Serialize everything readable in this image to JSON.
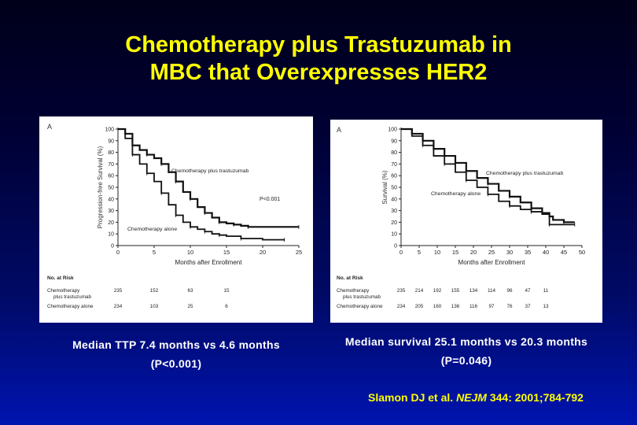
{
  "slide": {
    "title_line1": "Chemotherapy plus Trastuzumab in",
    "title_line2": "MBC that Overexpresses HER2",
    "caption_left_line1": "Median TTP 7.4 months vs 4.6 months",
    "caption_left_line2": "(P<0.001)",
    "caption_right_line1": "Median survival 25.1 months vs 20.3 months",
    "caption_right_line2": "(P=0.046)",
    "citation_authors": "Slamon DJ et al. ",
    "citation_journal": "NEJM",
    "citation_rest": " 344: 2001;784-792",
    "colors": {
      "title": "#ffff00",
      "caption": "#ffffff",
      "citation": "#ffff00"
    }
  },
  "chart_data": [
    {
      "type": "line",
      "panel_label": "A",
      "xlabel": "Months after Enrollment",
      "ylabel": "Progression-free Survival (%)",
      "xlim": [
        0,
        25
      ],
      "ylim": [
        0,
        100
      ],
      "x_ticks": [
        0,
        5,
        10,
        15,
        20,
        25
      ],
      "y_ticks": [
        0,
        10,
        20,
        30,
        40,
        50,
        60,
        70,
        80,
        90,
        100
      ],
      "annotation": "P<0.001",
      "series": [
        {
          "name": "Chemotherapy plus trastuzumab",
          "points": [
            [
              0,
              100
            ],
            [
              1,
              96
            ],
            [
              2,
              86
            ],
            [
              3,
              82
            ],
            [
              4,
              78
            ],
            [
              5,
              75
            ],
            [
              6,
              70
            ],
            [
              7,
              63
            ],
            [
              8,
              55
            ],
            [
              9,
              46
            ],
            [
              10,
              40
            ],
            [
              11,
              33
            ],
            [
              12,
              28
            ],
            [
              13,
              24
            ],
            [
              14,
              20
            ],
            [
              15,
              19
            ],
            [
              16,
              18
            ],
            [
              17,
              17
            ],
            [
              18,
              16
            ],
            [
              22,
              16
            ],
            [
              25,
              16
            ]
          ]
        },
        {
          "name": "Chemotherapy alone",
          "points": [
            [
              0,
              100
            ],
            [
              1,
              92
            ],
            [
              2,
              78
            ],
            [
              3,
              70
            ],
            [
              4,
              62
            ],
            [
              5,
              55
            ],
            [
              6,
              45
            ],
            [
              7,
              35
            ],
            [
              8,
              26
            ],
            [
              9,
              20
            ],
            [
              10,
              16
            ],
            [
              11,
              14
            ],
            [
              12,
              12
            ],
            [
              13,
              10
            ],
            [
              14,
              9
            ],
            [
              15,
              8
            ],
            [
              17,
              6
            ],
            [
              20,
              5
            ],
            [
              23,
              5
            ]
          ]
        }
      ],
      "risk_table": {
        "header": "No. at Risk",
        "rows": [
          {
            "label_line1": "Chemotherapy",
            "label_line2": "plus trastuzumab",
            "values": [
              "235",
              "152",
              "63",
              "15"
            ]
          },
          {
            "label_line1": "Chemotherapy alone",
            "label_line2": "",
            "values": [
              "234",
              "103",
              "25",
              "6"
            ]
          }
        ]
      }
    },
    {
      "type": "line",
      "panel_label": "A",
      "xlabel": "Months after Enrollment",
      "ylabel": "Survival (%)",
      "xlim": [
        0,
        50
      ],
      "ylim": [
        0,
        100
      ],
      "x_ticks": [
        0,
        5,
        10,
        15,
        20,
        25,
        30,
        35,
        40,
        45,
        50
      ],
      "y_ticks": [
        0,
        10,
        20,
        30,
        40,
        50,
        60,
        70,
        80,
        90,
        100
      ],
      "series": [
        {
          "name": "Chemotherapy plus trastuzumab",
          "points": [
            [
              0,
              100
            ],
            [
              3,
              96
            ],
            [
              6,
              90
            ],
            [
              9,
              83
            ],
            [
              12,
              77
            ],
            [
              15,
              71
            ],
            [
              18,
              64
            ],
            [
              21,
              58
            ],
            [
              24,
              53
            ],
            [
              27,
              47
            ],
            [
              30,
              42
            ],
            [
              33,
              37
            ],
            [
              36,
              32
            ],
            [
              39,
              28
            ],
            [
              41,
              25
            ],
            [
              42,
              22
            ],
            [
              45,
              20
            ],
            [
              48,
              20
            ]
          ]
        },
        {
          "name": "Chemotherapy alone",
          "points": [
            [
              0,
              100
            ],
            [
              3,
              94
            ],
            [
              6,
              86
            ],
            [
              9,
              77
            ],
            [
              12,
              70
            ],
            [
              15,
              63
            ],
            [
              18,
              56
            ],
            [
              21,
              50
            ],
            [
              24,
              44
            ],
            [
              27,
              38
            ],
            [
              30,
              34
            ],
            [
              33,
              31
            ],
            [
              36,
              29
            ],
            [
              39,
              27
            ],
            [
              41,
              18
            ],
            [
              44,
              18
            ],
            [
              48,
              18
            ]
          ]
        }
      ],
      "risk_table": {
        "header": "No. at Risk",
        "rows": [
          {
            "label_line1": "Chemotherapy",
            "label_line2": "plus trastuzumab",
            "values": [
              "235",
              "214",
              "192",
              "155",
              "134",
              "114",
              "96",
              "47",
              "11"
            ]
          },
          {
            "label_line1": "Chemotherapy alone",
            "label_line2": "",
            "values": [
              "234",
              "205",
              "160",
              "136",
              "116",
              "97",
              "76",
              "37",
              "13"
            ]
          }
        ]
      }
    }
  ]
}
